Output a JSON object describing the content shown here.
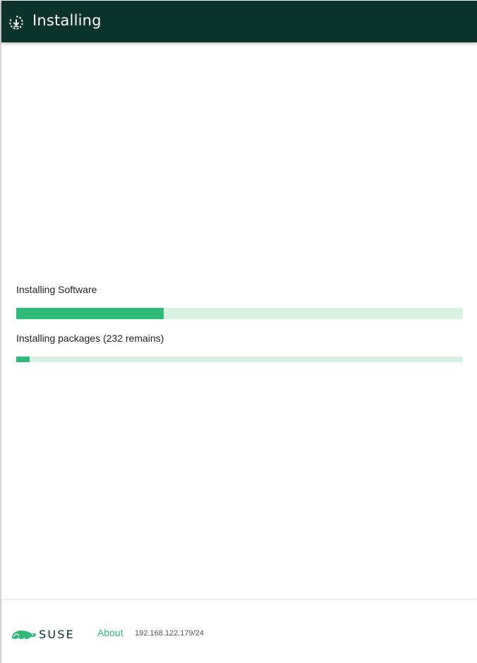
{
  "header": {
    "title": "Installing",
    "icon": "download-circle-icon"
  },
  "progress": {
    "main": {
      "label": "Installing Software",
      "percent": 33
    },
    "sub": {
      "label": "Installing packages (232 remains)",
      "percent": 3
    }
  },
  "footer": {
    "logo_text": "SUSE",
    "about_label": "About",
    "ip_address": "192.168.122.179/24"
  },
  "colors": {
    "header_bg": "#0c322c",
    "accent": "#30ba78",
    "track": "#d8f2e3"
  }
}
